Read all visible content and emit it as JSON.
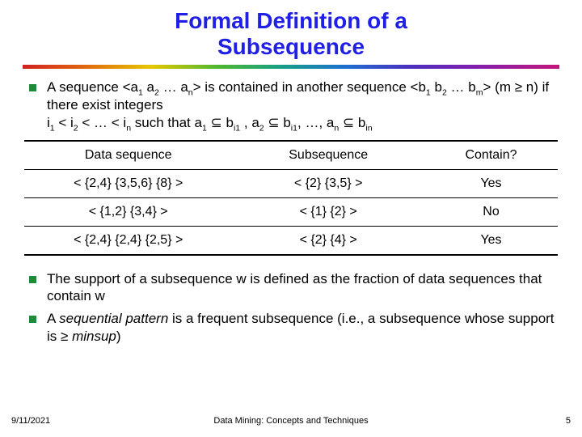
{
  "title_line1": "Formal Definition of a",
  "title_line2": "Subsequence",
  "bullet1_html": "A sequence &lt;a<sub>1</sub> a<sub>2</sub> … a<sub>n</sub>&gt; is contained in another sequence &lt;b<sub>1</sub> b<sub>2</sub> … b<sub>m</sub>&gt; (m ≥ n) if there exist integers<br>i<sub>1</sub> &lt; i<sub>2</sub> &lt; … &lt; i<sub>n</sub> such that a<sub>1</sub> ⊆ b<sub>i1</sub> , a<sub>2</sub> ⊆ b<sub>i1</sub>, …, a<sub>n</sub> ⊆ b<sub>in</sub>",
  "table": {
    "columns": [
      "Data sequence",
      "Subsequence",
      "Contain?"
    ],
    "rows": [
      [
        "< {2,4} {3,5,6} {8} >",
        "< {2} {3,5} >",
        "Yes"
      ],
      [
        "< {1,2} {3,4} >",
        "< {1} {2} >",
        "No"
      ],
      [
        "< {2,4} {2,4} {2,5} >",
        "< {2} {4} >",
        "Yes"
      ]
    ]
  },
  "bullet2_html": "The support of a subsequence w is defined as the fraction of data sequences that contain w",
  "bullet3_html": "A <span class=\"ital\">sequential pattern</span> is a frequent subsequence (i.e., a subsequence whose support is ≥ <span class=\"ital\">minsup</span>)",
  "footer": {
    "date": "9/11/2021",
    "center": "Data Mining: Concepts and Techniques",
    "page": "5"
  },
  "colors": {
    "title": "#1f1fe6",
    "bullet_box": "#1f8a3a",
    "text": "#000000",
    "bg": "#ffffff"
  }
}
